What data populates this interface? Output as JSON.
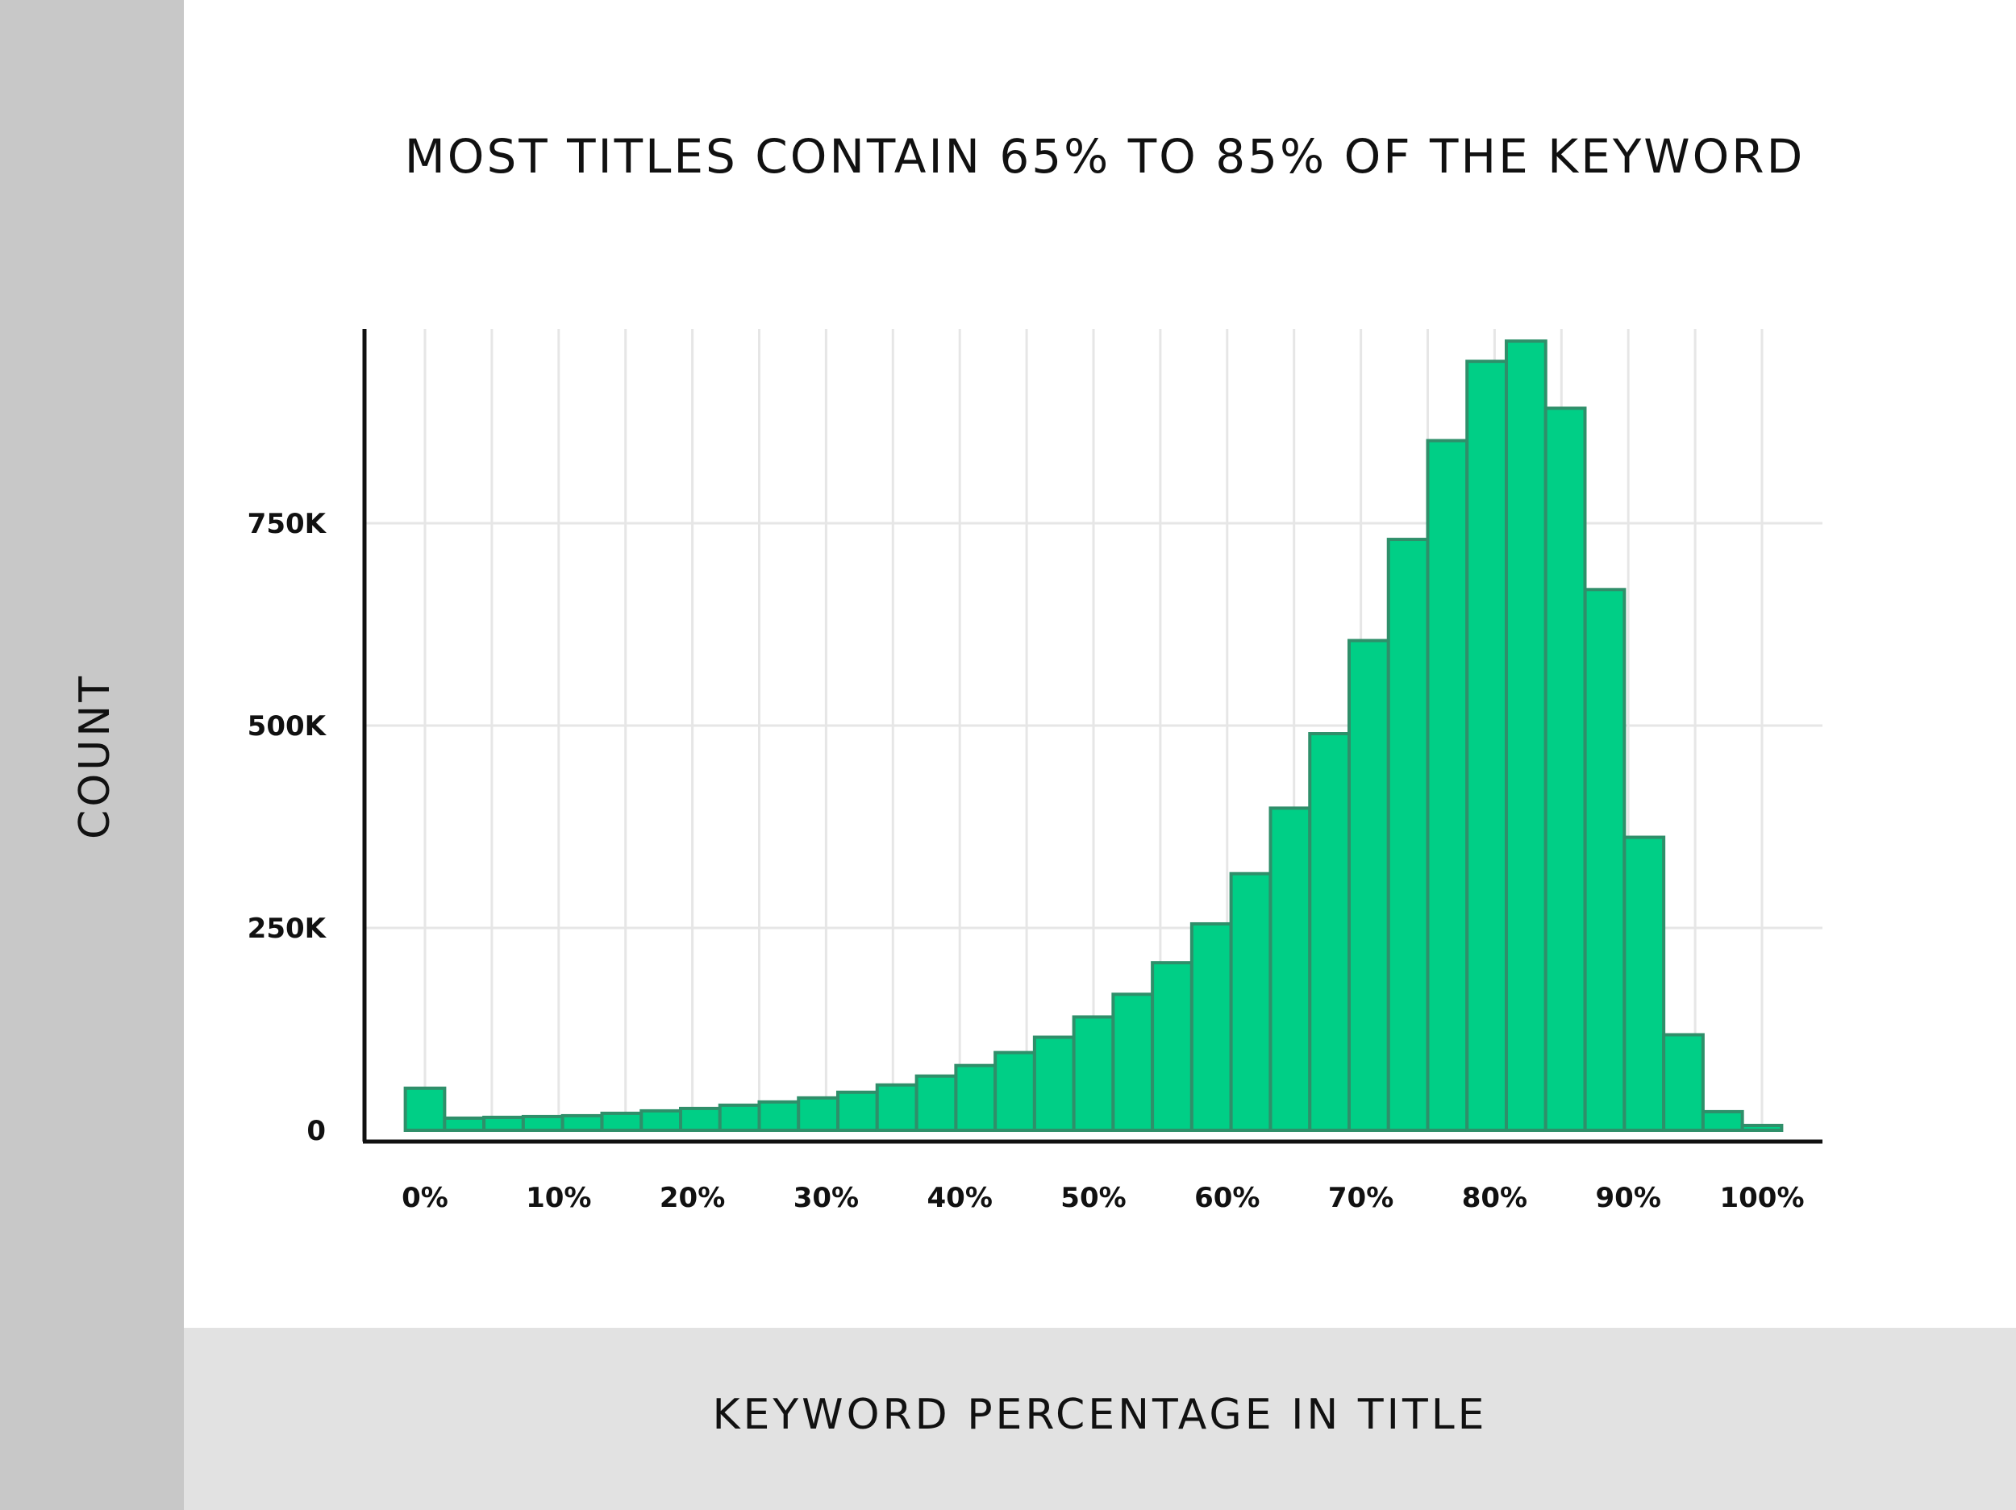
{
  "chart_data": {
    "type": "bar",
    "title": "MOST TITLES CONTAIN 65% TO 85% OF THE KEYWORD",
    "xlabel": "KEYWORD PERCENTAGE IN TITLE",
    "ylabel": "COUNT",
    "x_ticks": [
      "0%",
      "10%",
      "20%",
      "30%",
      "40%",
      "50%",
      "60%",
      "70%",
      "80%",
      "90%",
      "100%"
    ],
    "x_range": [
      -2.5,
      105
    ],
    "y_ticks": [
      {
        "value": 0,
        "label": "0"
      },
      {
        "value": 250000,
        "label": "250K"
      },
      {
        "value": 500000,
        "label": "500K"
      },
      {
        "value": 750000,
        "label": "750K"
      }
    ],
    "ylim": [
      0,
      990000
    ],
    "grid": true,
    "bin_width": 2.941,
    "bins": [
      {
        "x": 0.0,
        "value": 52000
      },
      {
        "x": 2.94,
        "value": 15000
      },
      {
        "x": 5.88,
        "value": 16000
      },
      {
        "x": 8.82,
        "value": 17000
      },
      {
        "x": 11.76,
        "value": 18000
      },
      {
        "x": 14.71,
        "value": 21000
      },
      {
        "x": 17.65,
        "value": 24000
      },
      {
        "x": 20.59,
        "value": 27000
      },
      {
        "x": 23.53,
        "value": 31000
      },
      {
        "x": 26.47,
        "value": 35000
      },
      {
        "x": 29.41,
        "value": 40000
      },
      {
        "x": 32.35,
        "value": 47000
      },
      {
        "x": 35.29,
        "value": 56000
      },
      {
        "x": 38.24,
        "value": 67000
      },
      {
        "x": 41.18,
        "value": 80000
      },
      {
        "x": 44.12,
        "value": 96000
      },
      {
        "x": 47.06,
        "value": 115000
      },
      {
        "x": 50.0,
        "value": 140000
      },
      {
        "x": 52.94,
        "value": 168000
      },
      {
        "x": 55.88,
        "value": 207000
      },
      {
        "x": 58.82,
        "value": 255000
      },
      {
        "x": 61.76,
        "value": 317000
      },
      {
        "x": 64.71,
        "value": 398000
      },
      {
        "x": 67.65,
        "value": 490000
      },
      {
        "x": 70.59,
        "value": 605000
      },
      {
        "x": 73.53,
        "value": 730000
      },
      {
        "x": 76.47,
        "value": 852000
      },
      {
        "x": 79.41,
        "value": 950000
      },
      {
        "x": 82.35,
        "value": 975000
      },
      {
        "x": 85.29,
        "value": 892000
      },
      {
        "x": 88.24,
        "value": 668000
      },
      {
        "x": 91.18,
        "value": 362000
      },
      {
        "x": 94.12,
        "value": 118000
      },
      {
        "x": 97.06,
        "value": 23000
      },
      {
        "x": 100.0,
        "value": 6000
      }
    ],
    "colors": {
      "bar_fill": "#00cf86",
      "bar_stroke": "#2f8f6a",
      "grid": "#e6e6e6",
      "axis": "#111111"
    }
  }
}
